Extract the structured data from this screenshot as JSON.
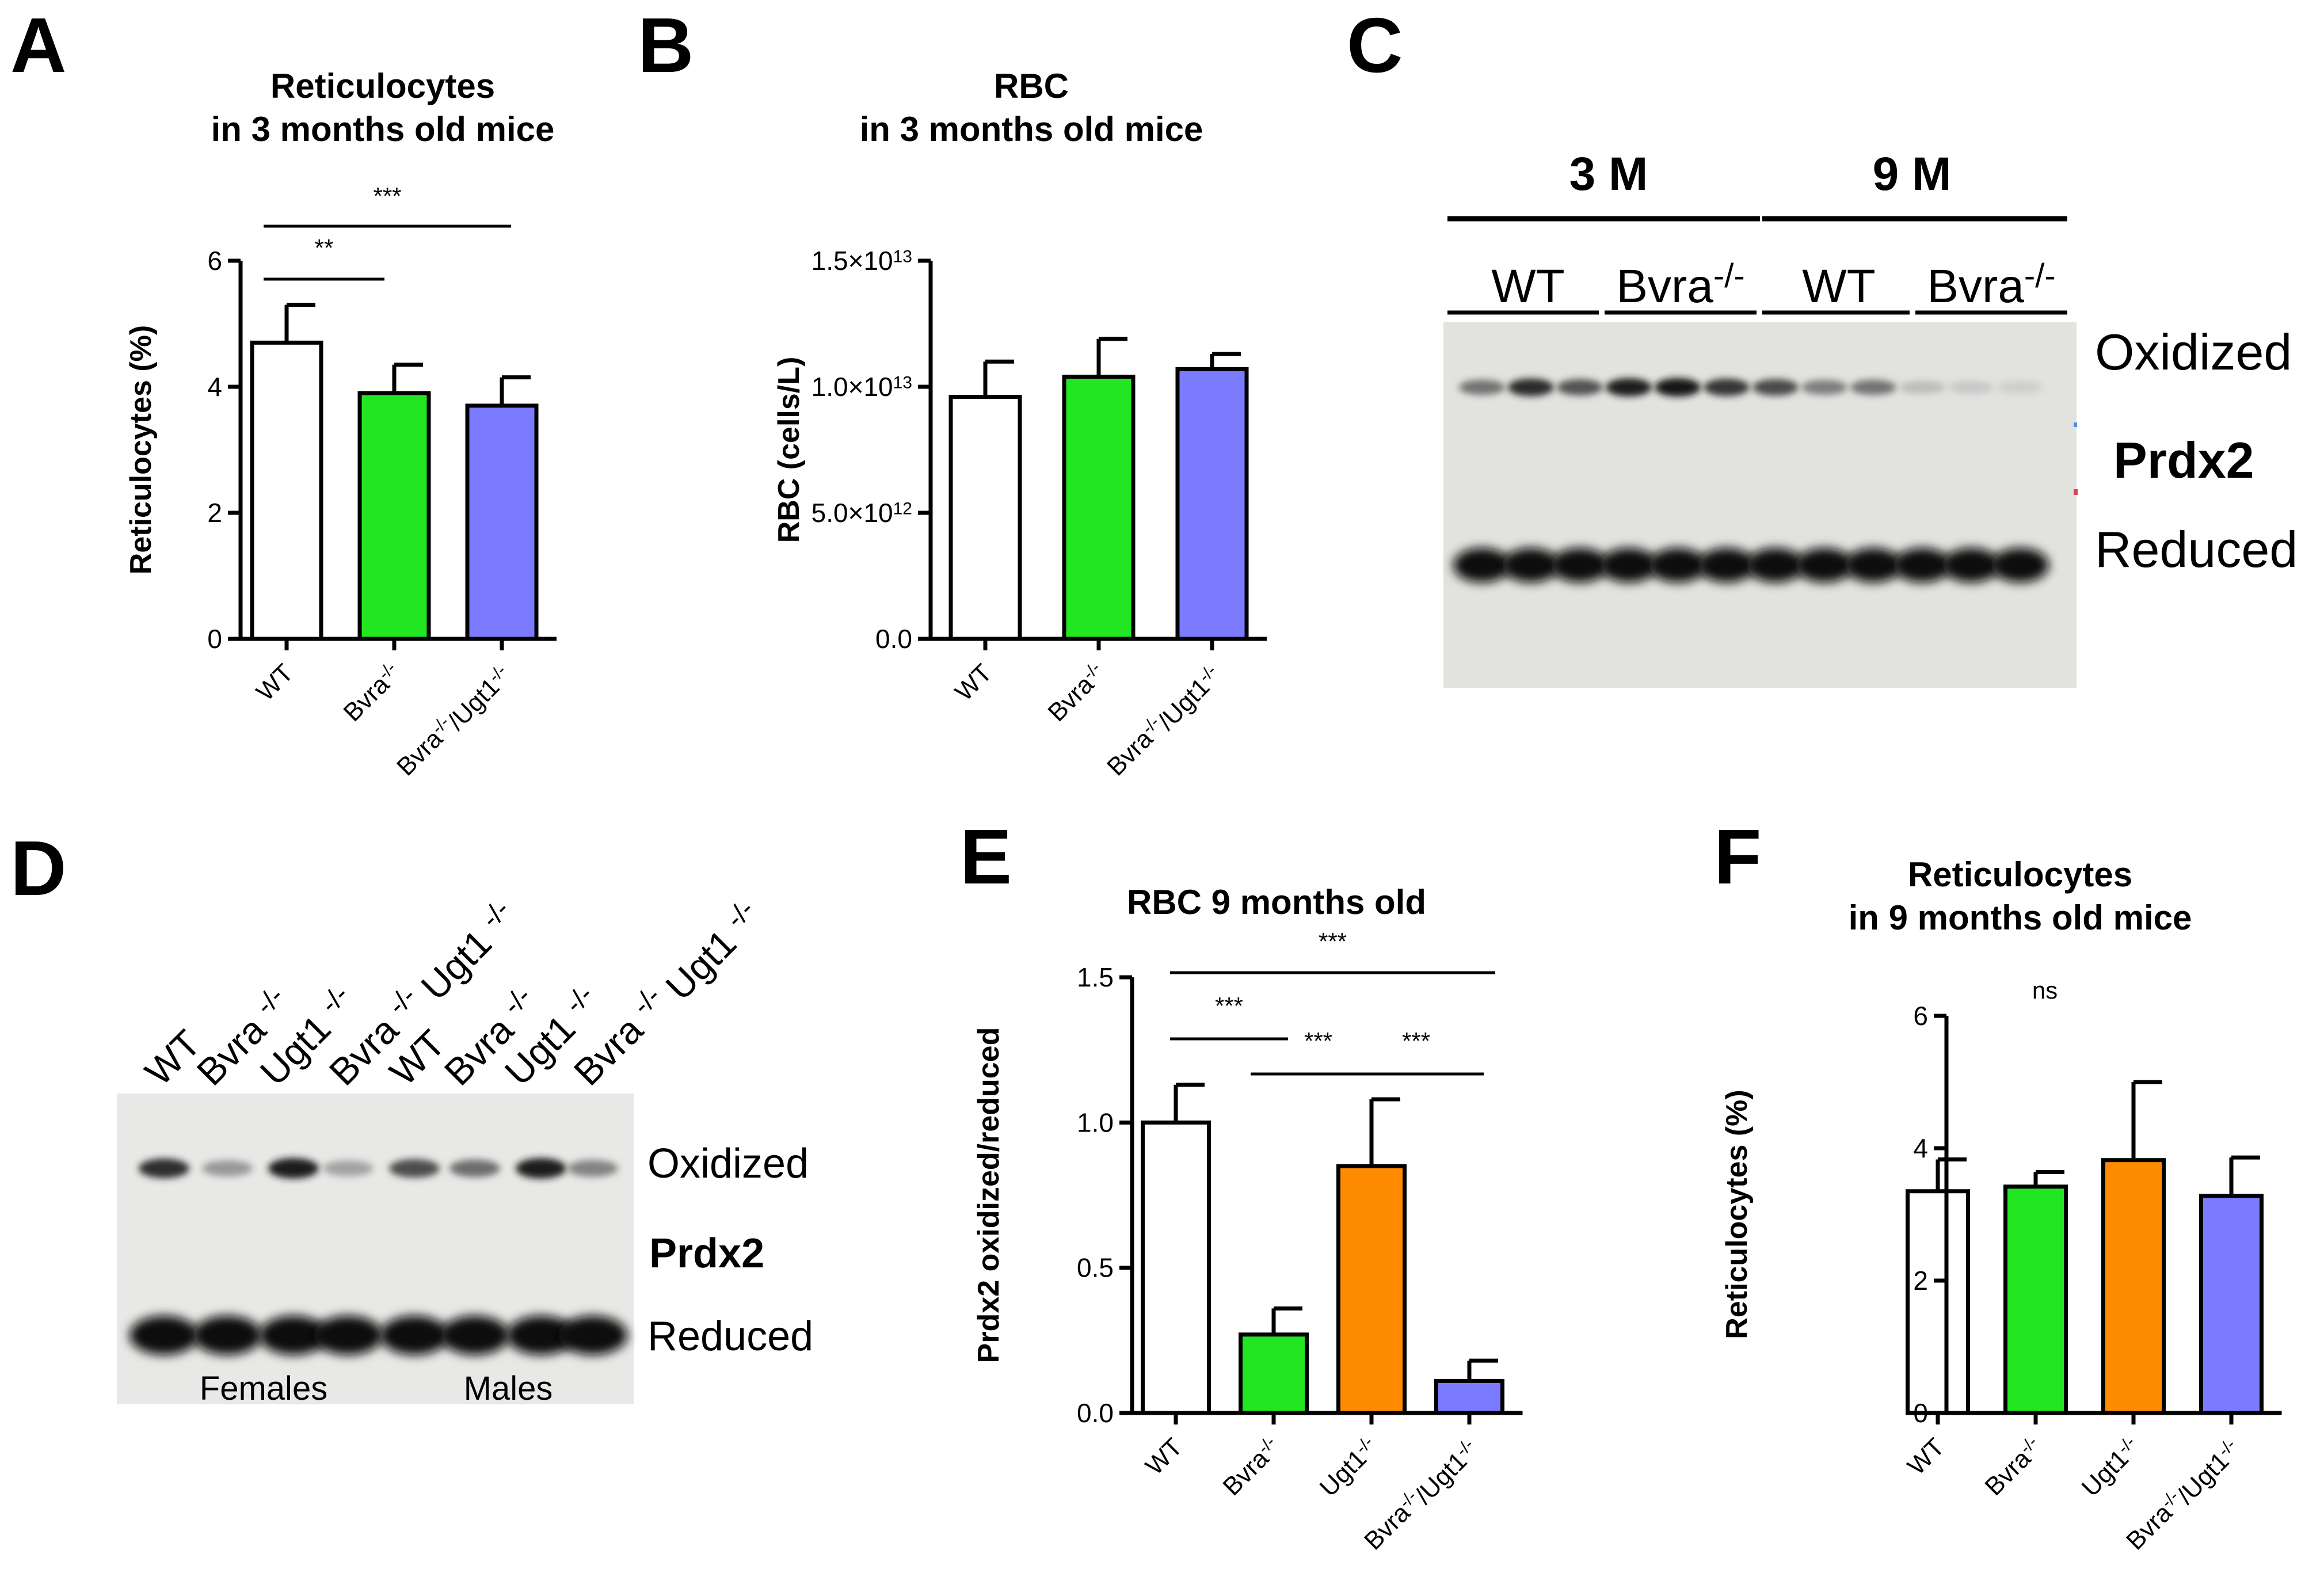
{
  "figure": {
    "panel_labels": [
      "A",
      "B",
      "C",
      "D",
      "E",
      "F"
    ]
  },
  "colors": {
    "wt": "#ffffff",
    "bvra": "#22e622",
    "ugt1": "#ff8c00",
    "double": "#7b7bff",
    "axis": "#000000",
    "blot_bg_c": "#e2e2df",
    "blot_bg_d": "#e8e8e6"
  },
  "chart_data": [
    {
      "id": "A",
      "type": "bar",
      "title_line1": "Reticulocytes",
      "title_line2": "in 3 months old mice",
      "ylabel": "Reticulocytes (%)",
      "ylim": [
        0,
        6
      ],
      "yticks": [
        "0",
        "2",
        "4",
        "6"
      ],
      "categories": [
        {
          "base": "WT",
          "sup": ""
        },
        {
          "base": "Bvra",
          "sup": "-/-"
        },
        {
          "base": "Bvra",
          "sup": "-/-",
          "base2": "/Ugt1",
          "sup2": "-/-"
        }
      ],
      "values": [
        4.7,
        3.9,
        3.7
      ],
      "errors": [
        0.6,
        0.45,
        0.45
      ],
      "bar_colors": [
        "#ffffff",
        "#22e622",
        "#7b7bff"
      ],
      "significance": [
        {
          "from": 0,
          "to": 1,
          "label": "**"
        },
        {
          "from": 0,
          "to": 2,
          "label": "***"
        }
      ]
    },
    {
      "id": "B",
      "type": "bar",
      "title_line1": "RBC",
      "title_line2": "in 3 months old mice",
      "ylabel": "RBC (cells/L)",
      "ylim": [
        0,
        15
      ],
      "yticks": [
        {
          "base": "0.0",
          "sup": ""
        },
        {
          "base": "5.0×10",
          "sup": "12"
        },
        {
          "base": "1.0×10",
          "sup": "13"
        },
        {
          "base": "1.5×10",
          "sup": "13"
        }
      ],
      "scale_note": "values in 10^12 cells/L",
      "categories": [
        {
          "base": "WT",
          "sup": ""
        },
        {
          "base": "Bvra",
          "sup": "-/-"
        },
        {
          "base": "Bvra",
          "sup": "-/-",
          "base2": "/Ugt1",
          "sup2": "-/-"
        }
      ],
      "values": [
        9.6,
        10.4,
        10.7
      ],
      "errors": [
        1.4,
        1.5,
        0.6
      ],
      "bar_colors": [
        "#ffffff",
        "#22e622",
        "#7b7bff"
      ]
    },
    {
      "id": "E",
      "type": "bar",
      "title_line1": "RBC 9 months old",
      "title_line2": "",
      "ylabel": "Prdx2 oxidized/reduced",
      "ylim": [
        0,
        1.5
      ],
      "yticks": [
        "0.0",
        "0.5",
        "1.0",
        "1.5"
      ],
      "categories": [
        {
          "base": "WT",
          "sup": ""
        },
        {
          "base": "Bvra",
          "sup": "-/-"
        },
        {
          "base": "Ugt1",
          "sup": "-/-"
        },
        {
          "base": "Bvra",
          "sup": "-/-",
          "base2": "/Ugt1",
          "sup2": "-/-"
        }
      ],
      "values": [
        1.0,
        0.27,
        0.85,
        0.11
      ],
      "errors": [
        0.13,
        0.09,
        0.23,
        0.07
      ],
      "bar_colors": [
        "#ffffff",
        "#22e622",
        "#ff8c00",
        "#7b7bff"
      ],
      "significance": [
        {
          "from": 0,
          "to": 1,
          "label": "***"
        },
        {
          "from": 1,
          "to": 2,
          "label": "***"
        },
        {
          "from": 2,
          "to": 3,
          "label": "***"
        },
        {
          "from": 0,
          "to": 3,
          "label": "***"
        }
      ]
    },
    {
      "id": "F",
      "type": "bar",
      "title_line1": "Reticulocytes",
      "title_line2": "in 9 months old mice",
      "ylabel": "Reticulocytes (%)",
      "ylim": [
        0,
        6
      ],
      "yticks": [
        "0",
        "2",
        "4",
        "6"
      ],
      "categories": [
        {
          "base": "WT",
          "sup": ""
        },
        {
          "base": "Bvra",
          "sup": "-/-"
        },
        {
          "base": "Ugt1",
          "sup": "-/-"
        },
        {
          "base": "Bvra",
          "sup": "-/-",
          "base2": "/Ugt1",
          "sup2": "-/-"
        }
      ],
      "values": [
        3.35,
        3.42,
        3.82,
        3.28
      ],
      "errors": [
        0.48,
        0.22,
        1.18,
        0.58
      ],
      "bar_colors": [
        "#ffffff",
        "#22e622",
        "#ff8c00",
        "#7b7bff"
      ],
      "annotation": "ns"
    }
  ],
  "blot_c": {
    "group_headers": [
      "3 M",
      "9 M"
    ],
    "lane_groups": [
      {
        "base": "WT",
        "sup": ""
      },
      {
        "base": "Bvra",
        "sup": "-/-"
      },
      {
        "base": "WT",
        "sup": ""
      },
      {
        "base": "Bvra",
        "sup": "-/-"
      }
    ],
    "labels": {
      "oxidized": "Oxidized",
      "protein": "Prdx2",
      "reduced": "Reduced"
    },
    "oxidized_intensity": [
      0.55,
      0.9,
      0.7,
      0.95,
      1.0,
      0.85,
      0.75,
      0.5,
      0.55,
      0.2,
      0.15,
      0.12
    ],
    "reduced_intensity": [
      1,
      1,
      1,
      1,
      1,
      1,
      1,
      1,
      1,
      1,
      1,
      1
    ]
  },
  "blot_d": {
    "lanes": [
      {
        "base": "WT",
        "sup": ""
      },
      {
        "base": "Bvra ",
        "sup": "-/-"
      },
      {
        "base": "Ugt1 ",
        "sup": "-/-"
      },
      {
        "base": "Bvra ",
        "sup": "-/-",
        "base2": " Ugt1 ",
        "sup2": "-/-"
      },
      {
        "base": "WT",
        "sup": ""
      },
      {
        "base": "Bvra ",
        "sup": "-/-"
      },
      {
        "base": "Ugt1 ",
        "sup": "-/-"
      },
      {
        "base": "Bvra ",
        "sup": "-/-",
        "base2": " Ugt1 ",
        "sup2": "-/-"
      }
    ],
    "labels": {
      "oxidized": "Oxidized",
      "protein": "Prdx2",
      "reduced": "Reduced"
    },
    "groups": [
      "Females",
      "Males"
    ],
    "oxidized_intensity": [
      0.85,
      0.35,
      0.95,
      0.3,
      0.7,
      0.55,
      0.95,
      0.45
    ],
    "reduced_intensity": [
      1,
      1,
      1,
      1,
      1,
      1,
      1,
      1
    ]
  }
}
